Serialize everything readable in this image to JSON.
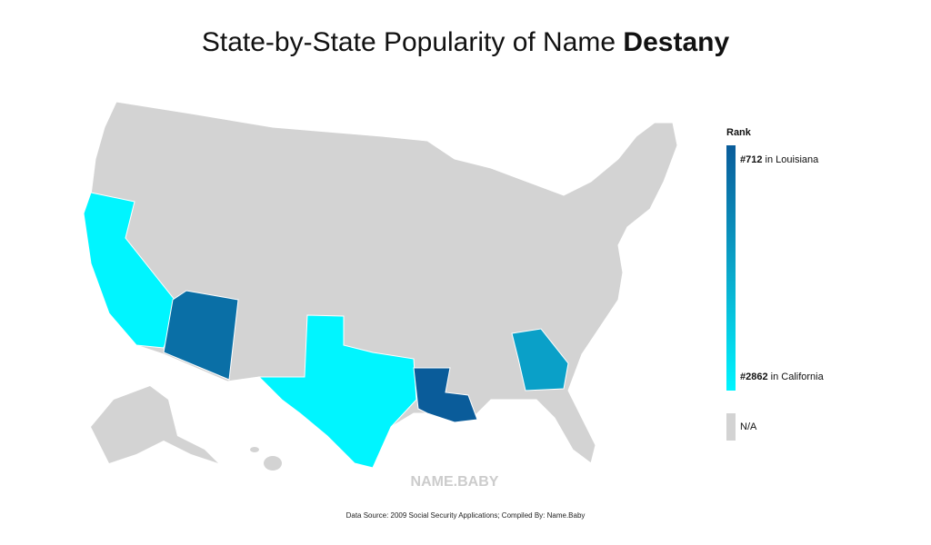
{
  "header": {
    "title": "State-by-State Popularity of Name ",
    "name": "Destany"
  },
  "legend": {
    "title": "Rank",
    "top": {
      "rank": "#712",
      "place": " in Louisiana"
    },
    "bottom": {
      "rank": "#2862",
      "place": " in California"
    },
    "na": "N/A"
  },
  "watermark": "NAME.BABY",
  "footer": "Data Source: 2009 Social Security Applications; Compiled By: Name.Baby"
}
